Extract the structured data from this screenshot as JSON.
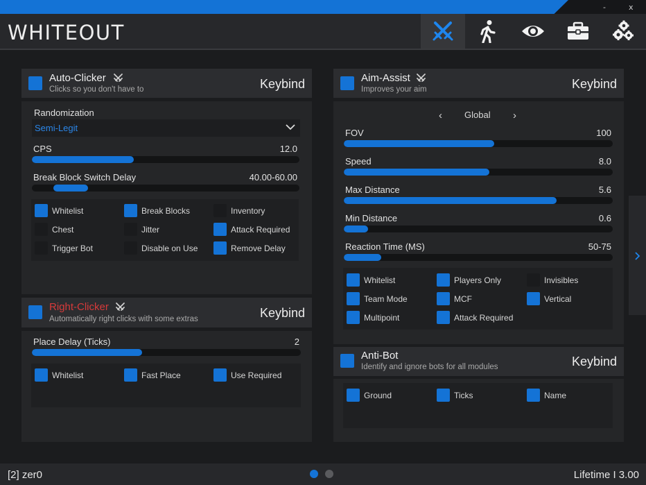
{
  "window": {
    "minimize": "-",
    "close": "x"
  },
  "app": {
    "title": "WHITEOUT"
  },
  "nav": {
    "tabs": [
      {
        "name": "combat",
        "icon": "crossed-swords-icon",
        "active": true
      },
      {
        "name": "movement",
        "icon": "walking-person-icon",
        "active": false
      },
      {
        "name": "render",
        "icon": "eye-icon",
        "active": false
      },
      {
        "name": "player",
        "icon": "toolbox-icon",
        "active": false
      },
      {
        "name": "misc",
        "icon": "gears-icon",
        "active": false
      }
    ]
  },
  "autoclicker": {
    "title": "Auto-Clicker",
    "subtitle": "Clicks so you don't have to",
    "keybind": "Keybind",
    "enabled": true,
    "randomization_label": "Randomization",
    "randomization_value": "Semi-Legit",
    "cps_label": "CPS",
    "cps_value": "12.0",
    "cps_fill": 0.38,
    "delay_label": "Break Block Switch Delay",
    "delay_value": "40.00-60.00",
    "delay_range": [
      0.08,
      0.21
    ],
    "options": [
      {
        "label": "Whitelist",
        "checked": true
      },
      {
        "label": "Break Blocks",
        "checked": true
      },
      {
        "label": "Inventory",
        "checked": false
      },
      {
        "label": "Chest",
        "checked": false
      },
      {
        "label": "Jitter",
        "checked": false
      },
      {
        "label": "Attack Required",
        "checked": true
      },
      {
        "label": "Trigger Bot",
        "checked": false
      },
      {
        "label": "Disable on Use",
        "checked": false
      },
      {
        "label": "Remove Delay",
        "checked": true
      }
    ]
  },
  "rightclicker": {
    "title": "Right-Clicker",
    "subtitle": "Automatically right clicks with some extras",
    "keybind": "Keybind",
    "enabled": true,
    "delay_label": "Place Delay (Ticks)",
    "delay_value": "2",
    "delay_fill": 0.41,
    "options": [
      {
        "label": "Whitelist",
        "checked": true
      },
      {
        "label": "Fast Place",
        "checked": true
      },
      {
        "label": "Use Required",
        "checked": true
      }
    ]
  },
  "aimassist": {
    "title": "Aim-Assist",
    "subtitle": "Improves your aim",
    "keybind": "Keybind",
    "enabled": true,
    "profile_prev": "‹",
    "profile": "Global",
    "profile_next": "›",
    "sliders": [
      {
        "label": "FOV",
        "value": "100",
        "fill": 0.56
      },
      {
        "label": "Speed",
        "value": "8.0",
        "fill": 0.54
      },
      {
        "label": "Max Distance",
        "value": "5.6",
        "fill": 0.79
      },
      {
        "label": "Min Distance",
        "value": "0.6",
        "fill": 0.09
      },
      {
        "label": "Reaction Time (MS)",
        "value": "50-75",
        "fill": 0.14
      }
    ],
    "options": [
      {
        "label": "Whitelist",
        "checked": true
      },
      {
        "label": "Players Only",
        "checked": true
      },
      {
        "label": "Invisibles",
        "checked": false
      },
      {
        "label": "Team Mode",
        "checked": true
      },
      {
        "label": "MCF",
        "checked": true
      },
      {
        "label": "Vertical",
        "checked": true
      },
      {
        "label": "Multipoint",
        "checked": true
      },
      {
        "label": "Attack Required",
        "checked": true
      }
    ]
  },
  "antibot": {
    "title": "Anti-Bot",
    "subtitle": "Identify and ignore bots for all modules",
    "keybind": "Keybind",
    "enabled": true,
    "options": [
      {
        "label": "Ground",
        "checked": true
      },
      {
        "label": "Ticks",
        "checked": true
      },
      {
        "label": "Name",
        "checked": true
      }
    ]
  },
  "status": {
    "user": "[2] zer0",
    "license": "Lifetime I 3.00",
    "page_index": 1,
    "page_count": 2
  },
  "colors": {
    "accent": "#1473d6",
    "danger": "#d63a3a"
  }
}
